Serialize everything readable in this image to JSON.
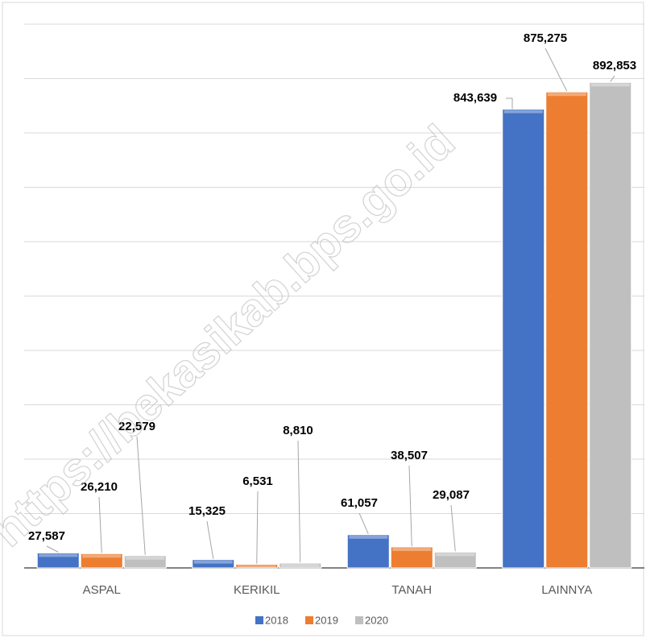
{
  "chart_data": {
    "type": "bar",
    "categories": [
      "ASPAL",
      "KERIKIL",
      "TANAH",
      "LAINNYA"
    ],
    "series": [
      {
        "name": "2018",
        "color": "#4472c4",
        "values": [
          27587,
          15325,
          61057,
          843639
        ],
        "value_labels": [
          "27,587",
          "15,325",
          "61,057",
          "843,639"
        ]
      },
      {
        "name": "2019",
        "color": "#ed7d31",
        "values": [
          26210,
          6531,
          38507,
          875275
        ],
        "value_labels": [
          "26,210",
          "6,531",
          "38,507",
          "875,275"
        ]
      },
      {
        "name": "2020",
        "color": "#bfbfbf",
        "values": [
          22579,
          8810,
          29087,
          892853
        ],
        "value_labels": [
          "22,579",
          "8,810",
          "29,087",
          "892,853"
        ]
      }
    ],
    "ylim": [
      0,
      1000000
    ],
    "yticks": [
      0,
      100000,
      200000,
      300000,
      400000,
      500000,
      600000,
      700000,
      800000,
      900000,
      1000000
    ],
    "grid": true,
    "legend": "bottom",
    "watermark": "https://bekasikab.bps.go.id"
  }
}
